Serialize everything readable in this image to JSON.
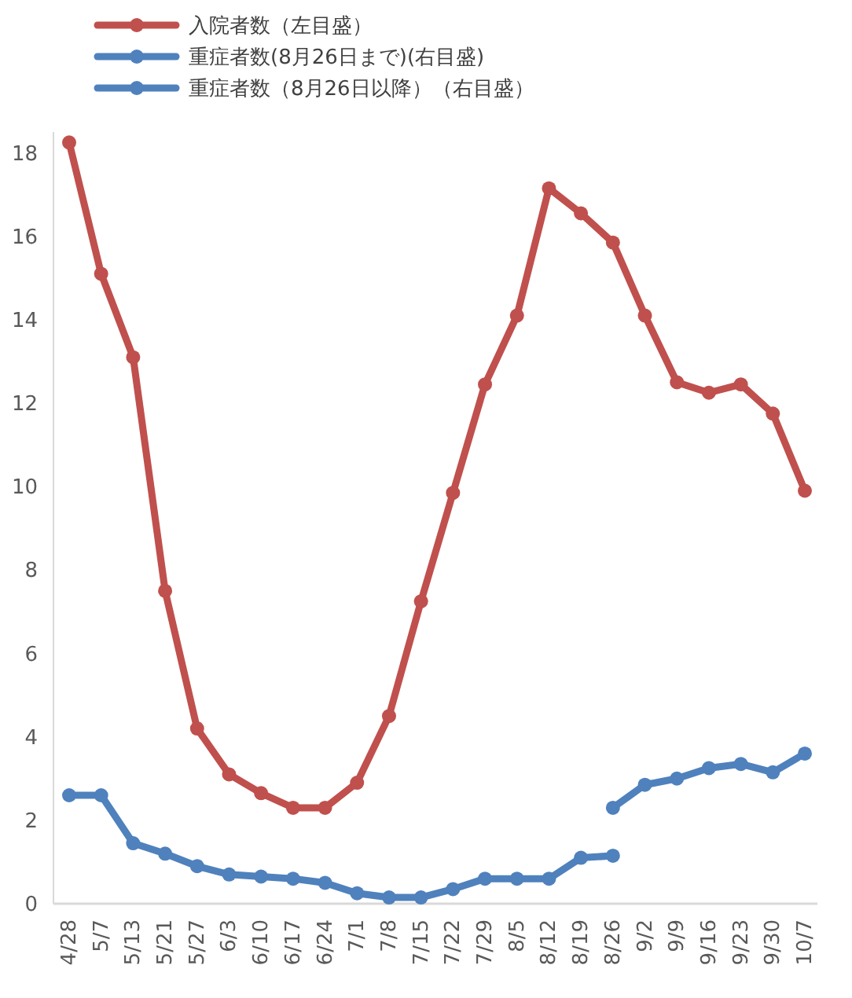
{
  "chart_data": {
    "type": "line",
    "categories": [
      "4/28",
      "5/7",
      "5/13",
      "5/21",
      "5/27",
      "6/3",
      "6/10",
      "6/17",
      "6/24",
      "7/1",
      "7/8",
      "7/15",
      "7/22",
      "7/29",
      "8/5",
      "8/12",
      "8/19",
      "8/26",
      "9/2",
      "9/9",
      "9/16",
      "9/23",
      "9/30",
      "10/7"
    ],
    "series": [
      {
        "name": "入院者数（左目盛）",
        "color": "#c0504d",
        "values": [
          18.25,
          15.1,
          13.1,
          7.5,
          4.2,
          3.1,
          2.65,
          2.3,
          2.3,
          2.9,
          4.5,
          7.25,
          9.85,
          12.45,
          14.1,
          17.15,
          16.55,
          15.85,
          14.1,
          12.5,
          12.25,
          12.45,
          11.75,
          9.9
        ]
      },
      {
        "name": "重症者数(8月26日まで)(右目盛)",
        "color": "#4f81bd",
        "values": [
          2.6,
          2.6,
          1.45,
          1.2,
          0.9,
          0.7,
          0.65,
          0.6,
          0.5,
          0.25,
          0.15,
          0.15,
          0.35,
          0.6,
          0.6,
          0.6,
          1.1,
          1.15,
          null,
          null,
          null,
          null,
          null,
          null
        ]
      },
      {
        "name": "重症者数（8月26日以降）（右目盛）",
        "color": "#4f81bd",
        "values": [
          null,
          null,
          null,
          null,
          null,
          null,
          null,
          null,
          null,
          null,
          null,
          null,
          null,
          null,
          null,
          null,
          null,
          2.3,
          2.85,
          3.0,
          3.25,
          3.35,
          3.15,
          3.6
        ]
      }
    ],
    "ylim": [
      0,
      18.5
    ],
    "yticks": [
      0,
      2,
      4,
      6,
      8,
      10,
      12,
      14,
      16,
      18
    ],
    "grid": false,
    "legend": "top left",
    "marker": "circle",
    "line_style": "solid"
  }
}
